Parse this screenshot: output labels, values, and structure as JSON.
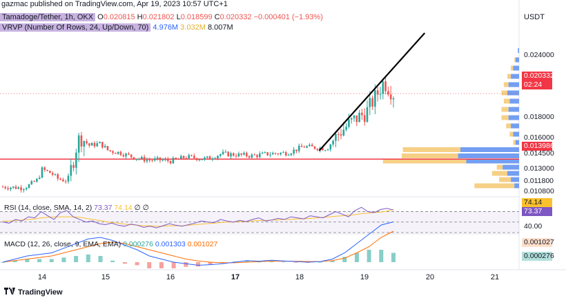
{
  "header": "gazmac published on TradingView.com, Apr 19, 2023 10:57 UTC+1",
  "currency": "USDT",
  "legend": {
    "title": "Tamadoge/Tether, 1h, OKX",
    "o_key": "O",
    "o_val": "0.020815",
    "h_key": "H",
    "h_val": "0.021802",
    "l_key": "L",
    "l_val": "0.018599",
    "c_key": "C",
    "c_val": "0.020332",
    "change": "−0.000401 (−1.93%)",
    "vrvp_label": "VRVP (Number Of Rows, 24, Up/Down, 70)",
    "vrvp_v1": "4.976M",
    "vrvp_v2": "3.032M",
    "vrvp_v3": "8.007M"
  },
  "rsi_legend": {
    "label": "RSI (14, close, SMA, 14, 2)",
    "v1": "73.37",
    "v2": "74.14",
    "flags": "∅ ∅"
  },
  "macd_legend": {
    "label": "MACD (12, 26, close, 9, EMA, EMA)",
    "v1": "0.000276",
    "v2": "0.001303",
    "v3": "0.001027"
  },
  "price_axis": [
    "0.024000",
    "0.018000",
    "0.016000",
    "0.014500",
    "0.013000",
    "0.011800",
    "0.010800"
  ],
  "price_tags": {
    "current": "0.020332",
    "countdown": "02:24",
    "hline": "0.013986"
  },
  "rsi_axis": {
    "tag1": "74.14",
    "tag2": "73.37",
    "level": "40.00"
  },
  "macd_axis": {
    "tag1": "0.001027",
    "tag2": "0.000276"
  },
  "x_axis": [
    "14",
    "15",
    "16",
    "17",
    "18",
    "19",
    "20",
    "21"
  ],
  "footer": "TradingView",
  "colors": {
    "up": "#26a69a",
    "down": "#ef5350",
    "hline": "#f23645",
    "rsi": "#7e57c2",
    "rsi_ma": "#fbc02d",
    "macd": "#2962ff",
    "signal": "#ff6d00",
    "vp_up": "#5b8def",
    "vp_down": "#f5c870"
  },
  "chart_data": [
    {
      "type": "candlestick",
      "title": "Tamadoge/Tether, 1h, OKX",
      "ylabel": "USDT",
      "x_ticks": [
        "14",
        "15",
        "16",
        "17",
        "18",
        "19",
        "20",
        "21"
      ],
      "ylim": [
        0.0104,
        0.0262
      ],
      "anchors": [
        [
          0.0,
          0.0113
        ],
        [
          0.05,
          0.0112
        ],
        [
          0.065,
          0.0114
        ],
        [
          0.09,
          0.012
        ],
        [
          0.1,
          0.013
        ],
        [
          0.125,
          0.0126
        ],
        [
          0.14,
          0.0121
        ],
        [
          0.16,
          0.0119
        ],
        [
          0.17,
          0.0122
        ],
        [
          0.19,
          0.0155
        ],
        [
          0.2,
          0.0162
        ],
        [
          0.22,
          0.0153
        ],
        [
          0.25,
          0.0155
        ],
        [
          0.27,
          0.0148
        ],
        [
          0.3,
          0.0146
        ],
        [
          0.34,
          0.0141
        ],
        [
          0.37,
          0.0139
        ],
        [
          0.4,
          0.0139
        ],
        [
          0.43,
          0.0138
        ],
        [
          0.47,
          0.0142
        ],
        [
          0.52,
          0.014
        ],
        [
          0.56,
          0.0145
        ],
        [
          0.6,
          0.0144
        ],
        [
          0.64,
          0.0143
        ],
        [
          0.68,
          0.0145
        ],
        [
          0.73,
          0.0146
        ],
        [
          0.77,
          0.0152
        ],
        [
          0.8,
          0.0151
        ],
        [
          0.83,
          0.015
        ],
        [
          0.86,
          0.0165
        ],
        [
          0.9,
          0.0178
        ],
        [
          0.93,
          0.0185
        ],
        [
          0.96,
          0.0204
        ],
        [
          0.975,
          0.0215
        ],
        [
          1.0,
          0.0203
        ]
      ],
      "trend_line": [
        [
          0.0148,
          0.81
        ],
        [
          0.0262,
          1.08
        ]
      ],
      "horizontal_line": 0.013986,
      "last": {
        "open": 0.020815,
        "high": 0.021802,
        "low": 0.018599,
        "close": 0.020332
      }
    },
    {
      "type": "bar",
      "title": "VRVP (Number Of Rows, 24, Up/Down, 70)",
      "price_levels": [
        0.0245,
        0.0236,
        0.0228,
        0.022,
        0.0212,
        0.0204,
        0.0196,
        0.0188,
        0.018,
        0.0172,
        0.0164,
        0.0156,
        0.0149,
        0.0143,
        0.0138,
        0.0132,
        0.0126,
        0.012,
        0.0114
      ],
      "series": [
        {
          "name": "up",
          "values": [
            1,
            3,
            5,
            7,
            9,
            10,
            8,
            9,
            9,
            7,
            5,
            3,
            50,
            52,
            45,
            14,
            10,
            7,
            4
          ]
        },
        {
          "name": "down",
          "values": [
            0,
            1,
            2,
            3,
            4,
            5,
            5,
            6,
            6,
            4,
            3,
            2,
            49,
            48,
            71,
            5,
            13,
            10,
            34
          ]
        }
      ]
    },
    {
      "type": "line",
      "title": "RSI (14, close, SMA, 14, 2)",
      "ylim": [
        30,
        85
      ],
      "levels": [
        70,
        50,
        30
      ],
      "series": [
        {
          "name": "RSI",
          "values": [
            50,
            48,
            55,
            52,
            60,
            58,
            70,
            62,
            55,
            68,
            72,
            60,
            55,
            50,
            52,
            47,
            45,
            48,
            44,
            42,
            46,
            44,
            40,
            42,
            39,
            43,
            47,
            44,
            42,
            45,
            48,
            52,
            50,
            49,
            55,
            52,
            50,
            53,
            51,
            55,
            58,
            52,
            54,
            57,
            55,
            60,
            58,
            56,
            62,
            60,
            58,
            64,
            70,
            65,
            60,
            72,
            78,
            70,
            68,
            74,
            76,
            73
          ]
        },
        {
          "name": "MA",
          "values": [
            52,
            52,
            53,
            54,
            55,
            56,
            58,
            59,
            60,
            60,
            60,
            60,
            59,
            57,
            55,
            53,
            51,
            49,
            48,
            46,
            45,
            44,
            43,
            43,
            42,
            42,
            43,
            43,
            43,
            44,
            45,
            46,
            47,
            48,
            49,
            50,
            50,
            51,
            51,
            52,
            53,
            53,
            54,
            54,
            55,
            55,
            56,
            56,
            57,
            58,
            59,
            60,
            61,
            62,
            63,
            64,
            66,
            67,
            68,
            69,
            71,
            74
          ]
        }
      ]
    },
    {
      "type": "line",
      "title": "MACD (12, 26, close, 9, EMA, EMA)",
      "series": [
        {
          "name": "MACD",
          "values": [
            0.0,
            0.0001,
            0.0002,
            0.00025,
            0.0003,
            0.00045,
            0.0006,
            0.00075,
            0.0008,
            0.0007,
            0.00055,
            0.0004,
            0.0002,
            0.0001,
            0.0,
            -5e-05,
            -0.0001,
            -8e-05,
            -5e-05,
            0.0,
            5e-05,
            3e-05,
            6e-05,
            4e-05,
            2e-05,
            0.0,
            2e-05,
            0.0001,
            0.0003,
            0.0006,
            0.0009,
            0.0012,
            0.0013
          ]
        },
        {
          "name": "Signal",
          "values": [
            0.0,
            5e-05,
            0.0001,
            0.00015,
            0.0002,
            0.0003,
            0.0004,
            0.0005,
            0.0006,
            0.00065,
            0.0006,
            0.0005,
            0.0004,
            0.0003,
            0.0002,
            0.0001,
            4e-05,
            0.0,
            -2e-05,
            -2e-05,
            0.0,
            2e-05,
            3e-05,
            3e-05,
            3e-05,
            2e-05,
            2e-05,
            5e-05,
            0.00013,
            0.0003,
            0.0005,
            0.0008,
            0.001
          ]
        },
        {
          "name": "Histogram",
          "values": [
            0.0,
            5e-05,
            0.0001,
            0.0001,
            0.0001,
            0.00015,
            0.0002,
            0.00025,
            0.0002,
            5e-05,
            -5e-05,
            -0.0001,
            -0.0002,
            -0.0002,
            -0.0002,
            -0.00015,
            -0.00014,
            -8e-05,
            -3e-05,
            2e-05,
            5e-05,
            1e-05,
            3e-05,
            1e-05,
            -1e-05,
            -2e-05,
            0.0,
            5e-05,
            0.00017,
            0.0003,
            0.0004,
            0.0004,
            0.0003
          ]
        }
      ]
    }
  ]
}
